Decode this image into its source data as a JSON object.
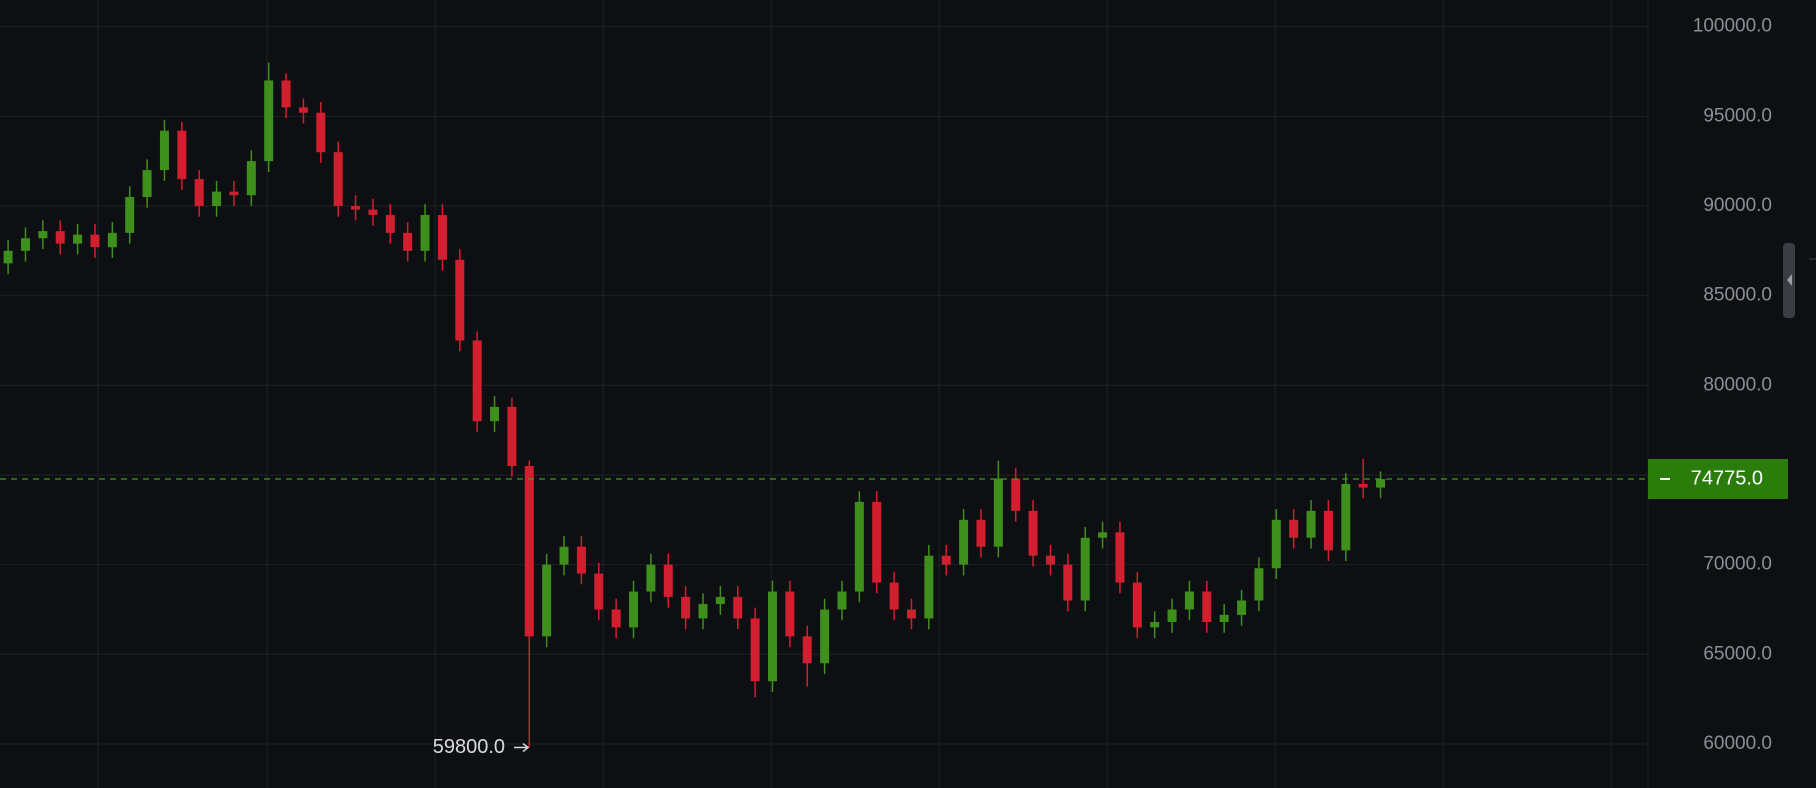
{
  "chart_data": {
    "type": "candlestick",
    "up_color": "#3f8f1c",
    "down_color": "#d21f2f",
    "grid": true,
    "ylim": [
      57545,
      101486
    ],
    "yticks": [
      {
        "value": 60000,
        "label": "60000.0"
      },
      {
        "value": 65000,
        "label": "65000.0"
      },
      {
        "value": 70000,
        "label": "70000.0"
      },
      {
        "value": 75000,
        "label": "75000.0"
      },
      {
        "value": 80000,
        "label": "80000.0"
      },
      {
        "value": 85000,
        "label": "85000.0"
      },
      {
        "value": 90000,
        "label": "90000.0"
      },
      {
        "value": 95000,
        "label": "95000.0"
      },
      {
        "value": 100000,
        "label": "100000.0"
      }
    ],
    "last_price": {
      "value": 74775,
      "label": "74775.0",
      "color": "#2a7d0a"
    },
    "low_marker": {
      "value": 59800,
      "label": "59800.0"
    },
    "open": [
      86800,
      87500,
      88200,
      88600,
      87900,
      88400,
      87700,
      88500,
      90500,
      92000,
      94200,
      91500,
      90000,
      90800,
      90600,
      92500,
      97000,
      95500,
      95200,
      93000,
      90000,
      89800,
      89500,
      88500,
      87500,
      89500,
      87000,
      82500,
      78000,
      78800,
      75500,
      66000,
      70000,
      71000,
      69500,
      67500,
      66500,
      68500,
      70000,
      68200,
      67000,
      67800,
      68200,
      67000,
      63500,
      68500,
      66000,
      64500,
      67500,
      68500,
      73500,
      69000,
      67500,
      67000,
      70500,
      70000,
      72500,
      71000,
      74800,
      73000,
      70500,
      70000,
      68000,
      71500,
      71800,
      69000,
      66500,
      66800,
      67500,
      68500,
      66800,
      67200,
      68000,
      69800,
      72500,
      71500,
      73000,
      70800,
      74500,
      74300
    ],
    "high": [
      88100,
      88800,
      89200,
      89200,
      89000,
      89000,
      89100,
      91100,
      92600,
      94800,
      94700,
      92000,
      91400,
      91400,
      93100,
      98000,
      97400,
      96000,
      95800,
      93600,
      90600,
      90400,
      90100,
      89100,
      90100,
      90100,
      87600,
      83000,
      79400,
      79300,
      75800,
      70600,
      71600,
      71600,
      70100,
      68100,
      69100,
      70600,
      70600,
      68800,
      68400,
      68800,
      68800,
      67600,
      69100,
      69100,
      66600,
      68100,
      69100,
      74100,
      74100,
      69600,
      68100,
      71100,
      71100,
      73100,
      73100,
      75800,
      75400,
      73600,
      71100,
      70600,
      72100,
      72400,
      72400,
      69600,
      67400,
      68100,
      69100,
      69100,
      67800,
      68600,
      70400,
      73100,
      73100,
      73600,
      73600,
      75100,
      75900,
      75200
    ],
    "low": [
      86200,
      86900,
      87600,
      87300,
      87300,
      87100,
      87100,
      87900,
      89900,
      91400,
      90900,
      89400,
      89400,
      90000,
      90000,
      91900,
      94900,
      94600,
      92400,
      89400,
      89200,
      88900,
      87900,
      86900,
      86900,
      86400,
      81900,
      77400,
      77400,
      74900,
      59800,
      65400,
      69400,
      68900,
      66900,
      65900,
      65900,
      67900,
      67600,
      66400,
      66400,
      67200,
      66400,
      62600,
      62900,
      65400,
      63200,
      63900,
      66900,
      67900,
      68400,
      66900,
      66400,
      66400,
      69400,
      69400,
      70400,
      70400,
      72400,
      69900,
      69400,
      67400,
      67400,
      70900,
      68400,
      65900,
      65900,
      66200,
      66900,
      66200,
      66200,
      66600,
      67400,
      69200,
      70900,
      70900,
      70200,
      70200,
      73700,
      73700
    ],
    "close": [
      87500,
      88200,
      88600,
      87900,
      88400,
      87700,
      88500,
      90500,
      92000,
      94200,
      91500,
      90000,
      90800,
      90600,
      92500,
      97000,
      95500,
      95200,
      93000,
      90000,
      89800,
      89500,
      88500,
      87500,
      89500,
      87000,
      82500,
      78000,
      78800,
      75500,
      66000,
      70000,
      71000,
      69500,
      67500,
      66500,
      68500,
      70000,
      68200,
      67000,
      67800,
      68200,
      67000,
      63500,
      68500,
      66000,
      64500,
      67500,
      68500,
      73500,
      69000,
      67500,
      67000,
      70500,
      70000,
      72500,
      71000,
      74800,
      73000,
      70500,
      70000,
      68000,
      71500,
      71800,
      69000,
      66500,
      66800,
      67500,
      68500,
      66800,
      67200,
      68000,
      69800,
      72500,
      71500,
      73000,
      70800,
      74500,
      74300,
      74775
    ]
  }
}
